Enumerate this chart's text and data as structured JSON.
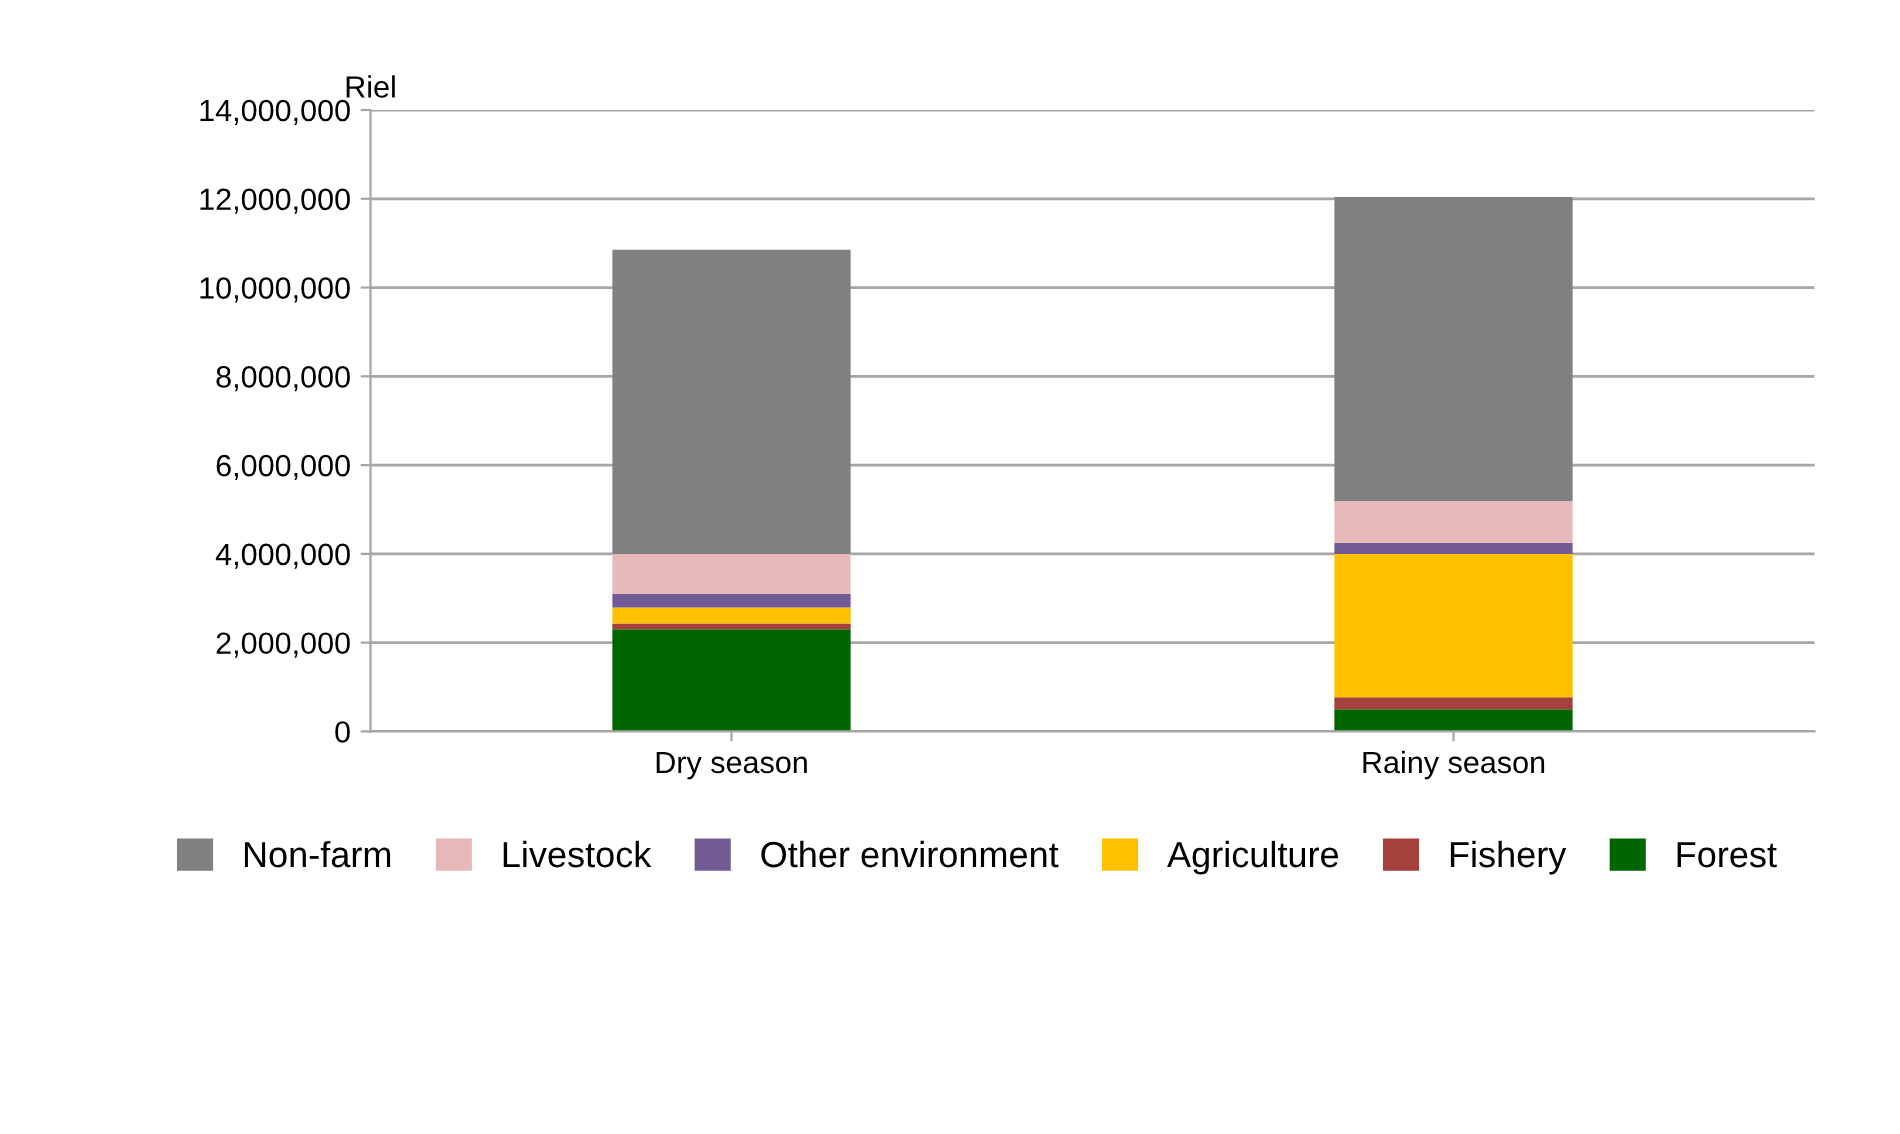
{
  "chart_data": {
    "type": "bar",
    "stacked": true,
    "ylabel": "Riel",
    "categories": [
      "Dry season",
      "Rainy season"
    ],
    "series": [
      {
        "name": "Forest",
        "color": "#006600",
        "values": [
          2300000,
          500000
        ]
      },
      {
        "name": "Fishery",
        "color": "#a5413c",
        "values": [
          130000,
          270000
        ]
      },
      {
        "name": "Agriculture",
        "color": "#ffc000",
        "values": [
          360000,
          3230000
        ]
      },
      {
        "name": "Other environment",
        "color": "#725a94",
        "values": [
          310000,
          250000
        ]
      },
      {
        "name": "Livestock",
        "color": "#e6b8b8",
        "values": [
          900000,
          940000
        ]
      },
      {
        "name": "Non-farm",
        "color": "#808080",
        "values": [
          6850000,
          6850000
        ]
      }
    ],
    "ylim": [
      0,
      14000000
    ],
    "yticks": [
      {
        "value": 0,
        "label": "0"
      },
      {
        "value": 2000000,
        "label": "2,000,000"
      },
      {
        "value": 4000000,
        "label": "4,000,000"
      },
      {
        "value": 6000000,
        "label": "6,000,000"
      },
      {
        "value": 8000000,
        "label": "8,000,000"
      },
      {
        "value": 10000000,
        "label": "10,000,000"
      },
      {
        "value": 12000000,
        "label": "12,000,000"
      },
      {
        "value": 14000000,
        "label": "14,000,000"
      }
    ],
    "grid": "y",
    "legend": "bottom"
  }
}
